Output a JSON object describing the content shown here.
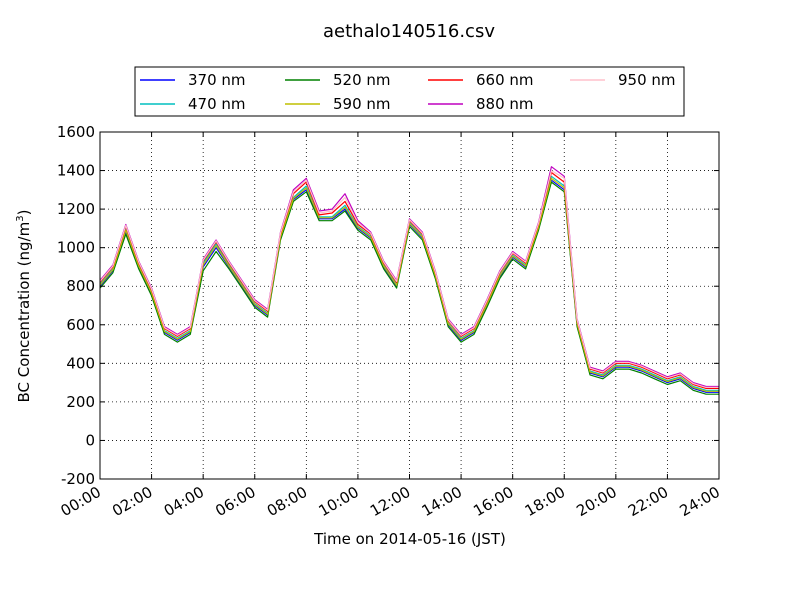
{
  "chart_data": {
    "type": "line",
    "title": "aethalo140516.csv",
    "xlabel": "Time on 2014-05-16 (JST)",
    "ylabel": "BC Concentration (ng/m",
    "ylabel_sup": "3",
    "ylabel_tail": ")",
    "xlim": [
      0,
      24
    ],
    "ylim": [
      -200,
      1600
    ],
    "grid": true,
    "legend_position": "top",
    "x_tick_labels": [
      "00:00",
      "02:00",
      "04:00",
      "06:00",
      "08:00",
      "10:00",
      "12:00",
      "14:00",
      "16:00",
      "18:00",
      "20:00",
      "22:00",
      "24:00"
    ],
    "y_tick_labels": [
      "-200",
      "0",
      "200",
      "400",
      "600",
      "800",
      "1000",
      "1200",
      "1400",
      "1600"
    ],
    "x_hours": [
      0,
      0.5,
      1,
      1.5,
      2,
      2.5,
      3,
      3.5,
      4,
      4.5,
      5,
      5.5,
      6,
      6.5,
      7,
      7.5,
      8,
      8.5,
      9,
      9.5,
      10,
      10.5,
      11,
      11.5,
      12,
      12.5,
      13,
      13.5,
      14,
      14.5,
      15,
      15.5,
      16,
      16.5,
      17,
      17.5,
      18,
      18.5,
      19,
      19.5,
      20,
      20.5,
      21,
      21.5,
      22,
      22.5,
      23,
      23.5,
      24
    ],
    "series": [
      {
        "name": "370 nm",
        "color": "#0000ff",
        "values": [
          800,
          880,
          1080,
          900,
          760,
          560,
          520,
          560,
          900,
          1000,
          900,
          800,
          700,
          650,
          1050,
          1250,
          1300,
          1150,
          1150,
          1200,
          1100,
          1050,
          900,
          800,
          1120,
          1050,
          850,
          600,
          520,
          560,
          700,
          850,
          950,
          900,
          1100,
          1350,
          1300,
          600,
          350,
          330,
          380,
          380,
          360,
          330,
          300,
          320,
          270,
          250,
          250
        ]
      },
      {
        "name": "470 nm",
        "color": "#00bfbf",
        "values": [
          810,
          890,
          1100,
          910,
          770,
          570,
          530,
          570,
          920,
          1020,
          910,
          810,
          710,
          660,
          1060,
          1260,
          1320,
          1160,
          1160,
          1220,
          1110,
          1060,
          910,
          810,
          1130,
          1060,
          860,
          610,
          530,
          570,
          710,
          860,
          960,
          910,
          1110,
          1370,
          1320,
          610,
          360,
          340,
          390,
          390,
          370,
          340,
          310,
          330,
          280,
          260,
          260
        ]
      },
      {
        "name": "520 nm",
        "color": "#008000",
        "values": [
          790,
          870,
          1070,
          890,
          750,
          550,
          510,
          550,
          880,
          980,
          890,
          790,
          690,
          640,
          1040,
          1240,
          1290,
          1140,
          1140,
          1190,
          1090,
          1040,
          890,
          790,
          1110,
          1040,
          840,
          590,
          510,
          550,
          690,
          840,
          940,
          890,
          1090,
          1340,
          1290,
          590,
          340,
          320,
          370,
          370,
          350,
          320,
          290,
          310,
          260,
          240,
          240
        ]
      },
      {
        "name": "590 nm",
        "color": "#bfbf00",
        "values": [
          805,
          885,
          1090,
          905,
          765,
          565,
          525,
          565,
          910,
          1010,
          905,
          805,
          705,
          655,
          1055,
          1255,
          1310,
          1155,
          1155,
          1210,
          1105,
          1055,
          905,
          805,
          1125,
          1055,
          855,
          605,
          525,
          565,
          705,
          855,
          955,
          905,
          1105,
          1360,
          1310,
          605,
          355,
          335,
          385,
          385,
          365,
          335,
          305,
          325,
          275,
          255,
          255
        ]
      },
      {
        "name": "660 nm",
        "color": "#ff0000",
        "values": [
          820,
          900,
          1110,
          920,
          780,
          580,
          540,
          580,
          930,
          1030,
          920,
          820,
          720,
          670,
          1070,
          1280,
          1340,
          1170,
          1180,
          1240,
          1120,
          1070,
          920,
          820,
          1140,
          1070,
          870,
          620,
          540,
          580,
          720,
          870,
          970,
          920,
          1120,
          1390,
          1340,
          620,
          370,
          350,
          400,
          400,
          380,
          350,
          320,
          340,
          290,
          270,
          270
        ]
      },
      {
        "name": "880 nm",
        "color": "#bf00bf",
        "values": [
          830,
          910,
          1120,
          930,
          790,
          590,
          550,
          590,
          940,
          1040,
          930,
          830,
          730,
          680,
          1080,
          1300,
          1360,
          1190,
          1200,
          1280,
          1140,
          1080,
          930,
          830,
          1150,
          1080,
          880,
          630,
          550,
          590,
          730,
          880,
          980,
          930,
          1130,
          1420,
          1370,
          630,
          380,
          360,
          410,
          410,
          390,
          360,
          330,
          350,
          300,
          280,
          280
        ]
      },
      {
        "name": "950 nm",
        "color": "#ffc0cb",
        "values": [
          825,
          905,
          1115,
          925,
          785,
          585,
          545,
          585,
          935,
          1035,
          925,
          825,
          725,
          675,
          1075,
          1290,
          1350,
          1180,
          1190,
          1260,
          1130,
          1075,
          925,
          825,
          1145,
          1075,
          875,
          625,
          545,
          585,
          725,
          875,
          975,
          925,
          1125,
          1400,
          1360,
          625,
          375,
          355,
          405,
          405,
          385,
          355,
          325,
          345,
          295,
          275,
          275
        ]
      }
    ]
  }
}
